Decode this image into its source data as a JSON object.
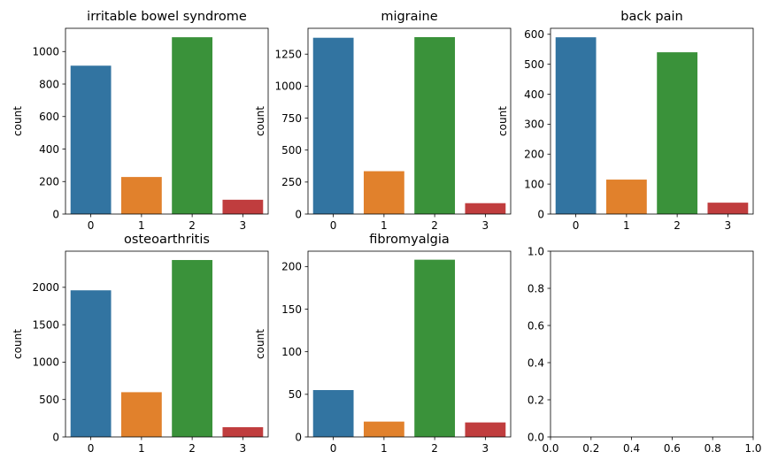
{
  "chart_data": [
    {
      "type": "bar",
      "title": "irritable bowel syndrome",
      "ylabel": "count",
      "xlabel": "",
      "categories": [
        "0",
        "1",
        "2",
        "3"
      ],
      "values": [
        913,
        228,
        1088,
        88
      ],
      "colors": [
        "#3274a1",
        "#e1812c",
        "#3a923a",
        "#c03d3e"
      ],
      "ylim": [
        0,
        1143
      ],
      "yticks": [
        0,
        200,
        400,
        600,
        800,
        1000
      ]
    },
    {
      "type": "bar",
      "title": "migraine",
      "ylabel": "count",
      "xlabel": "",
      "categories": [
        "0",
        "1",
        "2",
        "3"
      ],
      "values": [
        1378,
        335,
        1383,
        85
      ],
      "colors": [
        "#3274a1",
        "#e1812c",
        "#3a923a",
        "#c03d3e"
      ],
      "ylim": [
        0,
        1452
      ],
      "yticks": [
        0,
        250,
        500,
        750,
        1000,
        1250
      ]
    },
    {
      "type": "bar",
      "title": "back pain",
      "ylabel": "count",
      "xlabel": "",
      "categories": [
        "0",
        "1",
        "2",
        "3"
      ],
      "values": [
        590,
        115,
        540,
        38
      ],
      "colors": [
        "#3274a1",
        "#e1812c",
        "#3a923a",
        "#c03d3e"
      ],
      "ylim": [
        0,
        620
      ],
      "yticks": [
        0,
        100,
        200,
        300,
        400,
        500,
        600
      ]
    },
    {
      "type": "bar",
      "title": "osteoarthritis",
      "ylabel": "count",
      "xlabel": "",
      "categories": [
        "0",
        "1",
        "2",
        "3"
      ],
      "values": [
        1960,
        598,
        2365,
        130
      ],
      "colors": [
        "#3274a1",
        "#e1812c",
        "#3a923a",
        "#c03d3e"
      ],
      "ylim": [
        0,
        2483
      ],
      "yticks": [
        0,
        500,
        1000,
        1500,
        2000
      ]
    },
    {
      "type": "bar",
      "title": "fibromyalgia",
      "ylabel": "count",
      "xlabel": "",
      "categories": [
        "0",
        "1",
        "2",
        "3"
      ],
      "values": [
        55,
        18,
        208,
        17
      ],
      "colors": [
        "#3274a1",
        "#e1812c",
        "#3a923a",
        "#c03d3e"
      ],
      "ylim": [
        0,
        218
      ],
      "yticks": [
        0,
        50,
        100,
        150,
        200
      ]
    },
    {
      "type": "empty",
      "title": "",
      "xlim": [
        0,
        1
      ],
      "ylim": [
        0,
        1
      ],
      "xticks": [
        "0.0",
        "0.2",
        "0.4",
        "0.6",
        "0.8",
        "1.0"
      ],
      "yticks": [
        "0.0",
        "0.2",
        "0.4",
        "0.6",
        "0.8",
        "1.0"
      ]
    }
  ]
}
